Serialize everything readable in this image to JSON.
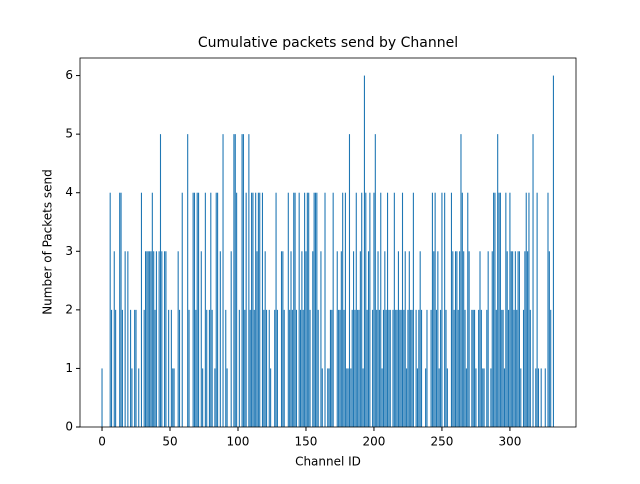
{
  "chart_data": {
    "type": "bar",
    "title": "Cumulative packets send by Channel",
    "xlabel": "Channel ID",
    "ylabel": "Number of Packets send",
    "color": "#1f77b4",
    "x": [
      0,
      1,
      2,
      3,
      4,
      5,
      6,
      7,
      8,
      9,
      10,
      11,
      12,
      13,
      14,
      15,
      16,
      17,
      18,
      19,
      20,
      21,
      22,
      23,
      24,
      25,
      26,
      27,
      28,
      29,
      30,
      31,
      32,
      33,
      34,
      35,
      36,
      37,
      38,
      39,
      40,
      41,
      42,
      43,
      44,
      45,
      46,
      47,
      48,
      49,
      50,
      51,
      52,
      53,
      54,
      55,
      56,
      57,
      58,
      59,
      60,
      61,
      62,
      63,
      64,
      65,
      66,
      67,
      68,
      69,
      70,
      71,
      72,
      73,
      74,
      75,
      76,
      77,
      78,
      79,
      80,
      81,
      82,
      83,
      84,
      85,
      86,
      87,
      88,
      89,
      90,
      91,
      92,
      93,
      94,
      95,
      96,
      97,
      98,
      99,
      100,
      101,
      102,
      103,
      104,
      105,
      106,
      107,
      108,
      109,
      110,
      111,
      112,
      113,
      114,
      115,
      116,
      117,
      118,
      119,
      120,
      121,
      122,
      123,
      124,
      125,
      126,
      127,
      128,
      129,
      130,
      131,
      132,
      133,
      134,
      135,
      136,
      137,
      138,
      139,
      140,
      141,
      142,
      143,
      144,
      145,
      146,
      147,
      148,
      149,
      150,
      151,
      152,
      153,
      154,
      155,
      156,
      157,
      158,
      159,
      160,
      161,
      162,
      163,
      164,
      165,
      166,
      167,
      168,
      169,
      170,
      171,
      172,
      173,
      174,
      175,
      176,
      177,
      178,
      179,
      180,
      181,
      182,
      183,
      184,
      185,
      186,
      187,
      188,
      189,
      190,
      191,
      192,
      193,
      194,
      195,
      196,
      197,
      198,
      199,
      200,
      201,
      202,
      203,
      204,
      205,
      206,
      207,
      208,
      209,
      210,
      211,
      212,
      213,
      214,
      215,
      216,
      217,
      218,
      219,
      220,
      221,
      222,
      223,
      224,
      225,
      226,
      227,
      228,
      229,
      230,
      231,
      232,
      233,
      234,
      235,
      236,
      237,
      238,
      239,
      240,
      241,
      242,
      243,
      244,
      245,
      246,
      247,
      248,
      249,
      250,
      251,
      252,
      253,
      254,
      255,
      256,
      257,
      258,
      259,
      260,
      261,
      262,
      263,
      264,
      265,
      266,
      267,
      268,
      269,
      270,
      271,
      272,
      273,
      274,
      275,
      276,
      277,
      278,
      279,
      280,
      281,
      282,
      283,
      284,
      285,
      286,
      287,
      288,
      289,
      290,
      291,
      292,
      293,
      294,
      295,
      296,
      297,
      298,
      299,
      300,
      301,
      302,
      303,
      304,
      305,
      306,
      307,
      308,
      309,
      310,
      311,
      312,
      313,
      314,
      315,
      316,
      317,
      318,
      319,
      320,
      321,
      322,
      323,
      324,
      325,
      326,
      327,
      328,
      329,
      330,
      331,
      332,
      333
    ],
    "values": [
      1,
      0,
      0,
      0,
      0,
      0,
      4,
      2,
      0,
      3,
      2,
      0,
      0,
      4,
      4,
      2,
      0,
      3,
      0,
      3,
      0,
      2,
      1,
      0,
      2,
      2,
      0,
      1,
      0,
      4,
      0,
      2,
      3,
      3,
      3,
      3,
      3,
      4,
      3,
      2,
      3,
      0,
      3,
      5,
      3,
      0,
      3,
      3,
      0,
      2,
      0,
      2,
      1,
      1,
      0,
      0,
      3,
      2,
      0,
      4,
      0,
      0,
      0,
      5,
      2,
      0,
      0,
      4,
      4,
      2,
      4,
      4,
      0,
      3,
      1,
      0,
      4,
      2,
      0,
      2,
      4,
      2,
      0,
      1,
      4,
      4,
      0,
      3,
      0,
      5,
      0,
      2,
      1,
      0,
      0,
      3,
      0,
      5,
      5,
      4,
      0,
      2,
      0,
      5,
      5,
      2,
      4,
      0,
      5,
      2,
      4,
      4,
      2,
      4,
      3,
      4,
      4,
      0,
      4,
      2,
      3,
      2,
      0,
      2,
      1,
      0,
      0,
      2,
      4,
      2,
      0,
      0,
      3,
      3,
      2,
      0,
      0,
      4,
      2,
      3,
      2,
      4,
      4,
      2,
      0,
      4,
      2,
      3,
      2,
      4,
      3,
      4,
      4,
      2,
      0,
      3,
      4,
      4,
      4,
      2,
      0,
      3,
      1,
      0,
      4,
      0,
      1,
      1,
      2,
      2,
      4,
      0,
      0,
      3,
      2,
      2,
      3,
      4,
      2,
      4,
      1,
      1,
      5,
      1,
      2,
      3,
      2,
      4,
      2,
      2,
      3,
      4,
      1,
      6,
      4,
      2,
      3,
      4,
      0,
      2,
      4,
      5,
      2,
      3,
      2,
      4,
      1,
      2,
      3,
      2,
      4,
      2,
      2,
      0,
      2,
      4,
      2,
      2,
      3,
      2,
      2,
      4,
      2,
      3,
      1,
      2,
      3,
      2,
      2,
      4,
      0,
      2,
      1,
      2,
      3,
      2,
      0,
      0,
      1,
      2,
      0,
      0,
      2,
      4,
      3,
      4,
      2,
      3,
      1,
      2,
      4,
      0,
      4,
      2,
      1,
      0,
      0,
      4,
      3,
      2,
      3,
      3,
      2,
      3,
      5,
      4,
      3,
      2,
      1,
      4,
      3,
      0,
      2,
      2,
      2,
      1,
      0,
      2,
      3,
      2,
      1,
      1,
      0,
      2,
      3,
      0,
      1,
      3,
      4,
      4,
      2,
      5,
      4,
      4,
      2,
      2,
      1,
      4,
      3,
      2,
      4,
      3,
      3,
      2,
      3,
      2,
      3,
      3,
      1,
      0,
      2,
      3,
      4,
      3,
      4,
      2,
      0,
      5,
      0,
      1,
      4,
      1,
      0,
      1,
      0,
      0,
      1,
      0,
      4,
      3,
      2,
      0,
      6,
      0
    ],
    "xlim": [
      -16.2,
      348.6
    ],
    "ylim": [
      0,
      6.3
    ],
    "xticks": [
      0,
      50,
      100,
      150,
      200,
      250,
      300
    ],
    "yticks": [
      0,
      1,
      2,
      3,
      4,
      5,
      6
    ]
  }
}
